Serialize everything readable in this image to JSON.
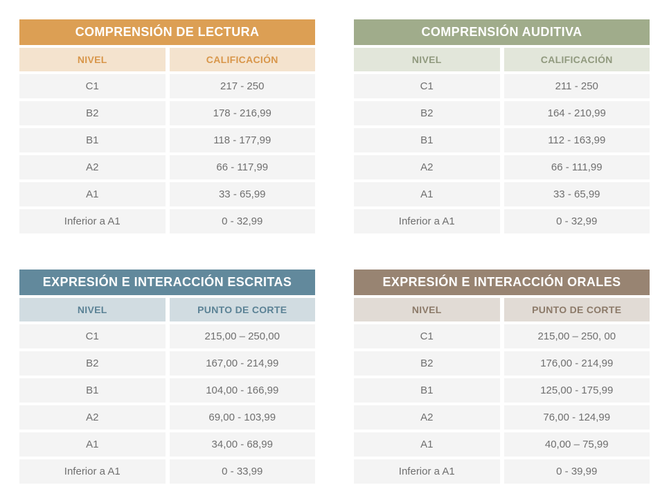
{
  "global": {
    "row_bg": "#f4f4f4",
    "row_text": "#6f6f6f",
    "title_text": "#ffffff"
  },
  "panels": [
    {
      "title": "COMPRENSIÓN DE LECTURA",
      "title_bg": "#dc9f54",
      "sub_bg": "#f4e3ce",
      "sub_text": "#d8964a",
      "col1_label": "NIVEL",
      "col2_label": "CALIFICACIÓN",
      "rows": [
        {
          "level": "C1",
          "score": "217 - 250"
        },
        {
          "level": "B2",
          "score": "178 - 216,99"
        },
        {
          "level": "B1",
          "score": "118 - 177,99"
        },
        {
          "level": "A2",
          "score": "66 - 117,99"
        },
        {
          "level": "A1",
          "score": "33 - 65,99"
        },
        {
          "level": "Inferior a A1",
          "score": "0 - 32,99"
        }
      ]
    },
    {
      "title": "COMPRENSIÓN AUDITIVA",
      "title_bg": "#a0ac8b",
      "sub_bg": "#e2e6da",
      "sub_text": "#90997e",
      "col1_label": "NIVEL",
      "col2_label": "CALIFICACIÓN",
      "rows": [
        {
          "level": "C1",
          "score": "211 - 250"
        },
        {
          "level": "B2",
          "score": "164 - 210,99"
        },
        {
          "level": "B1",
          "score": "112 - 163,99"
        },
        {
          "level": "A2",
          "score": "66 - 111,99"
        },
        {
          "level": "A1",
          "score": "33 - 65,99"
        },
        {
          "level": "Inferior a A1",
          "score": "0 - 32,99"
        }
      ]
    },
    {
      "title": "EXPRESIÓN E INTERACCIÓN ESCRITAS",
      "title_bg": "#62899c",
      "sub_bg": "#d1dce1",
      "sub_text": "#5b8295",
      "col1_label": "NIVEL",
      "col2_label": "PUNTO DE CORTE",
      "rows": [
        {
          "level": "C1",
          "score": "215,00 – 250,00"
        },
        {
          "level": "B2",
          "score": "167,00 - 214,99"
        },
        {
          "level": "B1",
          "score": "104,00 - 166,99"
        },
        {
          "level": "A2",
          "score": "69,00 - 103,99"
        },
        {
          "level": "A1",
          "score": "34,00 - 68,99"
        },
        {
          "level": "Inferior a A1",
          "score": "0 - 33,99"
        }
      ]
    },
    {
      "title": "EXPRESIÓN E INTERACCIÓN ORALES",
      "title_bg": "#988472",
      "sub_bg": "#e1dbd5",
      "sub_text": "#8c7a69",
      "col1_label": "NIVEL",
      "col2_label": "PUNTO DE CORTE",
      "rows": [
        {
          "level": "C1",
          "score": "215,00 – 250, 00"
        },
        {
          "level": "B2",
          "score": "176,00 - 214,99"
        },
        {
          "level": "B1",
          "score": "125,00 - 175,99"
        },
        {
          "level": "A2",
          "score": "76,00 - 124,99"
        },
        {
          "level": "A1",
          "score": "40,00 – 75,99"
        },
        {
          "level": "Inferior a A1",
          "score": "0 - 39,99"
        }
      ]
    }
  ]
}
